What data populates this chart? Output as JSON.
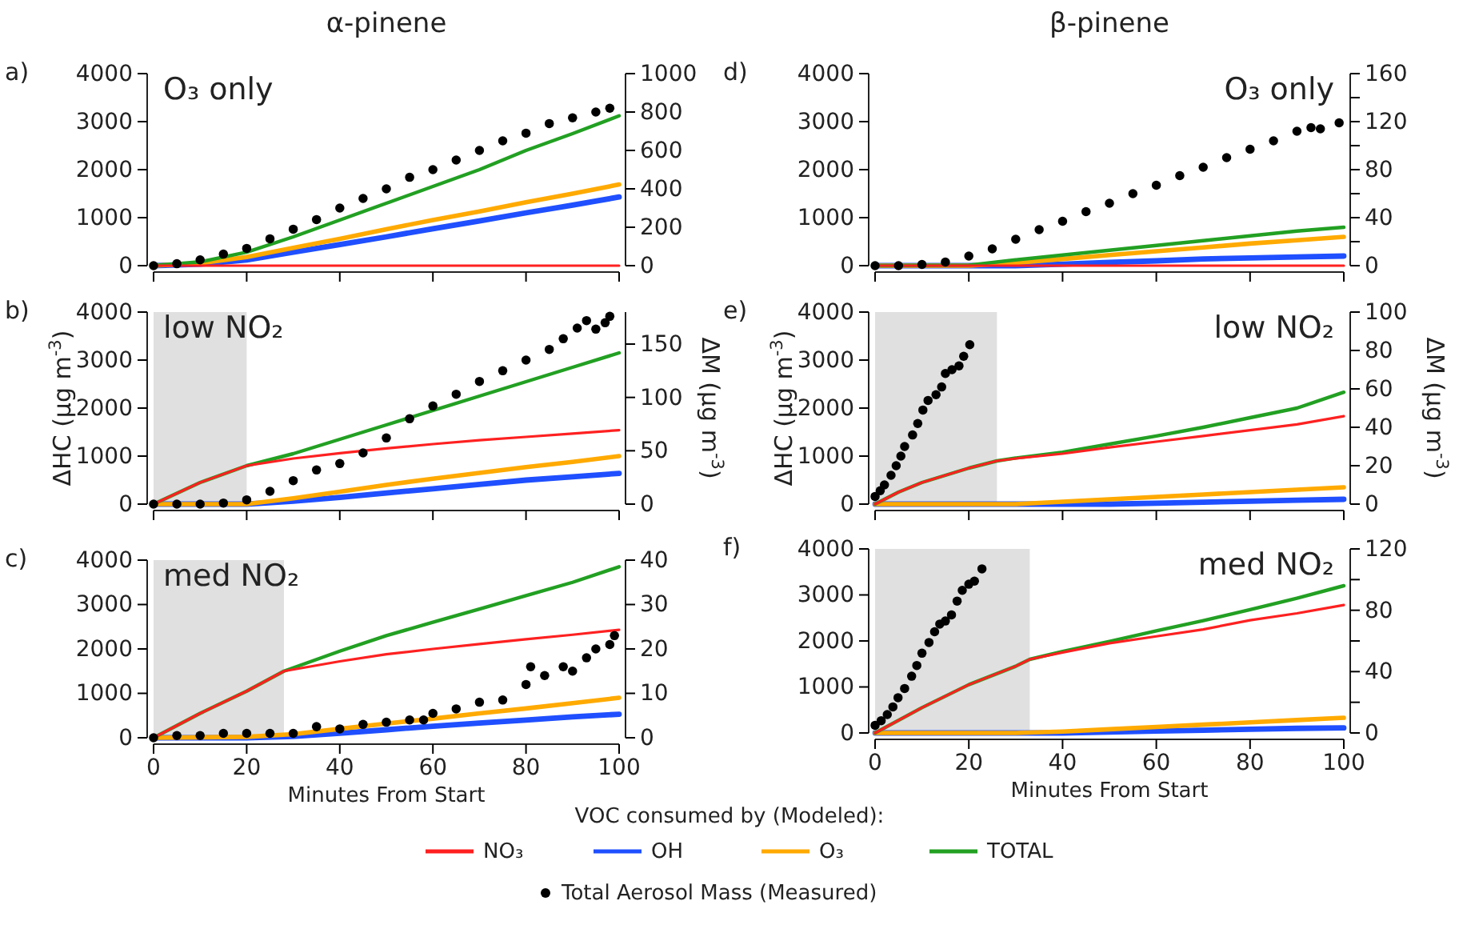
{
  "chart_data": [
    {
      "type": "line",
      "title": "α-pinene",
      "annotations": [
        "a)",
        "O₃ only"
      ],
      "xlim": [
        0,
        100
      ],
      "xticks": [
        0,
        20,
        40,
        60,
        80,
        100
      ],
      "ylim": [
        0,
        4000
      ],
      "yticks": [
        0,
        1000,
        2000,
        3000,
        4000
      ],
      "y2lim": [
        0,
        1000
      ],
      "y2ticks": [
        0,
        200,
        400,
        600,
        800,
        1000
      ],
      "tick_labels": "y",
      "series": [
        {
          "color": "#ff2020",
          "x": [
            0,
            100
          ],
          "values": [
            0,
            0
          ]
        },
        {
          "color": "#1f4fff",
          "x": [
            0,
            10,
            20,
            30,
            40,
            50,
            60,
            70,
            80,
            90,
            100
          ],
          "values": [
            0,
            30,
            120,
            280,
            440,
            600,
            770,
            930,
            1100,
            1260,
            1430
          ]
        },
        {
          "color": "#ffaa00",
          "x": [
            0,
            10,
            20,
            30,
            40,
            50,
            60,
            70,
            80,
            90,
            100
          ],
          "values": [
            0,
            50,
            180,
            370,
            560,
            760,
            950,
            1130,
            1320,
            1500,
            1690
          ]
        },
        {
          "color": "#22a022",
          "x": [
            0,
            10,
            20,
            30,
            40,
            50,
            60,
            70,
            80,
            90,
            100
          ],
          "values": [
            0,
            80,
            280,
            600,
            950,
            1300,
            1650,
            2000,
            2400,
            2750,
            3120
          ]
        },
        {
          "type": "scatter",
          "axis": "y2",
          "marker": "circle",
          "color": "#000000",
          "x": [
            0,
            5,
            10,
            15,
            20,
            25,
            30,
            35,
            40,
            45,
            50,
            55,
            60,
            65,
            70,
            75,
            80,
            85,
            90,
            95,
            98
          ],
          "values": [
            0,
            10,
            30,
            60,
            90,
            140,
            190,
            240,
            300,
            350,
            400,
            460,
            500,
            550,
            600,
            650,
            690,
            740,
            770,
            800,
            820
          ]
        }
      ]
    },
    {
      "type": "line",
      "annotations": [
        "b)",
        "low NO₂"
      ],
      "ylabel": "ΔHC (μg m$^{-3}$)",
      "y2label": "ΔM (μg m$^{-3}$)",
      "xlim": [
        0,
        100
      ],
      "xticks": [
        0,
        20,
        40,
        60,
        80,
        100
      ],
      "ylim": [
        0,
        4000
      ],
      "yticks": [
        0,
        1000,
        2000,
        3000,
        4000
      ],
      "y2lim": [
        0,
        180
      ],
      "y2ticks": [
        0,
        50,
        100,
        150
      ],
      "tick_labels": "y",
      "bands": [
        {
          "axis": "x",
          "from": 0,
          "to": 20,
          "color": "#e0e0e0"
        }
      ],
      "series": [
        {
          "color": "#ff2020",
          "x": [
            0,
            10,
            20,
            30,
            40,
            50,
            60,
            70,
            80,
            90,
            100
          ],
          "values": [
            0,
            450,
            800,
            950,
            1060,
            1160,
            1250,
            1330,
            1400,
            1470,
            1540
          ]
        },
        {
          "color": "#1f4fff",
          "x": [
            0,
            20,
            30,
            40,
            50,
            60,
            70,
            80,
            90,
            100
          ],
          "values": [
            0,
            0,
            60,
            140,
            230,
            320,
            410,
            500,
            570,
            640
          ]
        },
        {
          "color": "#ffaa00",
          "x": [
            0,
            20,
            30,
            40,
            50,
            60,
            70,
            80,
            90,
            100
          ],
          "values": [
            0,
            0,
            120,
            260,
            400,
            530,
            650,
            770,
            880,
            1000
          ]
        },
        {
          "color": "#22a022",
          "x": [
            0,
            10,
            20,
            30,
            40,
            50,
            60,
            70,
            80,
            90,
            100
          ],
          "values": [
            0,
            450,
            800,
            1050,
            1350,
            1650,
            1950,
            2250,
            2550,
            2850,
            3150
          ]
        },
        {
          "type": "scatter",
          "axis": "y2",
          "marker": "circle",
          "color": "#000000",
          "x": [
            0,
            5,
            10,
            15,
            20,
            25,
            30,
            35,
            40,
            45,
            50,
            55,
            60,
            65,
            70,
            75,
            80,
            85,
            88,
            91,
            93,
            95,
            97,
            98
          ],
          "values": [
            0,
            0,
            0,
            1,
            4,
            12,
            22,
            32,
            38,
            48,
            62,
            80,
            92,
            103,
            115,
            125,
            135,
            145,
            155,
            165,
            172,
            164,
            170,
            176
          ]
        }
      ]
    },
    {
      "type": "line",
      "annotations": [
        "c)",
        "med NO₂"
      ],
      "xlabel": "Minutes From Start",
      "legend": "bottom",
      "legend_title": "VOC consumed by (Modeled):",
      "xlim": [
        0,
        100
      ],
      "xticks": [
        0,
        20,
        40,
        60,
        80,
        100
      ],
      "ylim": [
        0,
        4000
      ],
      "yticks": [
        0,
        1000,
        2000,
        3000,
        4000
      ],
      "y2lim": [
        0,
        40
      ],
      "y2ticks": [
        0,
        10,
        20,
        30,
        40
      ],
      "bands": [
        {
          "axis": "x",
          "from": 0,
          "to": 28,
          "color": "#e0e0e0"
        }
      ],
      "series": [
        {
          "name": "NO₃",
          "color": "#ff2020",
          "x": [
            0,
            10,
            20,
            28,
            40,
            50,
            60,
            70,
            80,
            90,
            100
          ],
          "values": [
            0,
            550,
            1050,
            1500,
            1720,
            1880,
            2000,
            2110,
            2220,
            2320,
            2430
          ]
        },
        {
          "name": "OH",
          "color": "#1f4fff",
          "x": [
            0,
            20,
            30,
            40,
            50,
            60,
            70,
            80,
            90,
            100
          ],
          "values": [
            0,
            0,
            30,
            100,
            180,
            260,
            330,
            400,
            470,
            530
          ]
        },
        {
          "name": "O₃",
          "color": "#ffaa00",
          "x": [
            0,
            20,
            30,
            40,
            50,
            60,
            70,
            80,
            90,
            100
          ],
          "values": [
            0,
            20,
            80,
            200,
            320,
            430,
            550,
            660,
            780,
            900
          ]
        },
        {
          "name": "TOTAL",
          "color": "#22a022",
          "x": [
            0,
            10,
            20,
            28,
            40,
            50,
            60,
            70,
            80,
            90,
            100
          ],
          "values": [
            0,
            550,
            1050,
            1500,
            1950,
            2300,
            2600,
            2900,
            3200,
            3500,
            3850
          ]
        },
        {
          "name": "Total Aerosol Mass (Measured)",
          "type": "scatter",
          "axis": "y2",
          "marker": "circle",
          "color": "#000000",
          "x": [
            0,
            5,
            10,
            15,
            20,
            25,
            30,
            35,
            40,
            45,
            50,
            55,
            58,
            60,
            65,
            70,
            75,
            80,
            81,
            84,
            88,
            90,
            93,
            95,
            98,
            99
          ],
          "values": [
            0,
            0.5,
            0.5,
            1,
            1,
            1,
            1,
            2.5,
            2,
            3,
            3.5,
            4,
            4,
            5.5,
            6.5,
            8,
            8.5,
            12,
            16,
            14,
            16,
            15,
            18,
            20,
            21,
            23
          ]
        }
      ]
    },
    {
      "type": "line",
      "title": "β-pinene",
      "annotations": [
        "d)",
        "O₃ only"
      ],
      "xlim": [
        0,
        100
      ],
      "xticks": [
        0,
        20,
        40,
        60,
        80,
        100
      ],
      "ylim": [
        0,
        4000
      ],
      "yticks": [
        0,
        1000,
        2000,
        3000,
        4000
      ],
      "y2lim": [
        0,
        160
      ],
      "y2ticks": [
        0,
        {
          "value": 20,
          "label": null
        },
        40,
        {
          "value": 60,
          "label": null
        },
        80,
        {
          "value": 100,
          "label": null
        },
        120,
        {
          "value": 140,
          "label": null
        },
        160
      ],
      "tick_labels": "y",
      "series": [
        {
          "color": "#ff2020",
          "x": [
            0,
            100
          ],
          "values": [
            0,
            0
          ]
        },
        {
          "color": "#1f4fff",
          "x": [
            0,
            30,
            40,
            50,
            60,
            70,
            80,
            90,
            100
          ],
          "values": [
            0,
            0,
            30,
            70,
            100,
            140,
            160,
            180,
            200
          ]
        },
        {
          "color": "#ffaa00",
          "x": [
            0,
            20,
            30,
            40,
            50,
            60,
            70,
            80,
            90,
            100
          ],
          "values": [
            0,
            0,
            60,
            140,
            220,
            300,
            380,
            460,
            530,
            600
          ]
        },
        {
          "color": "#22a022",
          "x": [
            0,
            20,
            30,
            40,
            50,
            60,
            70,
            80,
            90,
            100
          ],
          "values": [
            0,
            10,
            120,
            220,
            320,
            420,
            520,
            620,
            720,
            800
          ]
        },
        {
          "type": "scatter",
          "axis": "y2",
          "marker": "circle",
          "color": "#000000",
          "x": [
            0,
            5,
            10,
            15,
            20,
            25,
            30,
            35,
            40,
            45,
            50,
            55,
            60,
            65,
            70,
            75,
            80,
            85,
            90,
            93,
            95,
            99
          ],
          "values": [
            0,
            0,
            1,
            3,
            8,
            14,
            22,
            30,
            37,
            45,
            52,
            60,
            67,
            75,
            82,
            90,
            97,
            104,
            112,
            115,
            114,
            119
          ]
        }
      ]
    },
    {
      "type": "line",
      "annotations": [
        "e)",
        "low NO₂"
      ],
      "ylabel": "ΔHC (μg m$^{-3}$)",
      "y2label": "ΔM (μg m$^{-3}$)",
      "xlim": [
        0,
        100
      ],
      "xticks": [
        0,
        20,
        40,
        60,
        80,
        100
      ],
      "ylim": [
        0,
        4000
      ],
      "yticks": [
        0,
        1000,
        2000,
        3000,
        4000
      ],
      "y2lim": [
        0,
        100
      ],
      "y2ticks": [
        0,
        20,
        40,
        60,
        80,
        100
      ],
      "tick_labels": "y",
      "bands": [
        {
          "axis": "x",
          "from": 0,
          "to": 26,
          "color": "#e0e0e0"
        }
      ],
      "series": [
        {
          "color": "#ff2020",
          "x": [
            0,
            5,
            10,
            20,
            26,
            30,
            40,
            50,
            60,
            70,
            80,
            90,
            100
          ],
          "values": [
            0,
            250,
            450,
            750,
            900,
            950,
            1050,
            1180,
            1300,
            1420,
            1540,
            1660,
            1830
          ]
        },
        {
          "color": "#1f4fff",
          "x": [
            0,
            50,
            60,
            70,
            80,
            90,
            100
          ],
          "values": [
            0,
            0,
            20,
            40,
            60,
            80,
            100
          ]
        },
        {
          "color": "#ffaa00",
          "x": [
            0,
            30,
            40,
            50,
            60,
            70,
            80,
            90,
            100
          ],
          "values": [
            0,
            0,
            50,
            100,
            150,
            200,
            250,
            300,
            350
          ]
        },
        {
          "color": "#22a022",
          "x": [
            0,
            5,
            10,
            20,
            26,
            30,
            40,
            50,
            60,
            70,
            80,
            90,
            100
          ],
          "values": [
            0,
            250,
            450,
            750,
            900,
            960,
            1080,
            1250,
            1420,
            1600,
            1800,
            2000,
            2330
          ]
        },
        {
          "type": "scatter",
          "axis": "y2",
          "marker": "circle",
          "color": "#000000",
          "x": [
            0,
            1.1,
            2,
            3.4,
            4.5,
            5.5,
            6.3,
            8,
            9.1,
            10.2,
            11.3,
            13,
            14.2,
            15,
            16.4,
            17.9,
            18.9,
            20.2
          ],
          "values": [
            4,
            7,
            10,
            15,
            20,
            25,
            30,
            36,
            42,
            49,
            54,
            57,
            61,
            68,
            70,
            72,
            77,
            83
          ]
        }
      ]
    },
    {
      "type": "line",
      "annotations": [
        "f)",
        "med NO₂"
      ],
      "xlabel": "Minutes From Start",
      "xlim": [
        0,
        100
      ],
      "xticks": [
        0,
        20,
        40,
        60,
        80,
        100
      ],
      "ylim": [
        0,
        4000
      ],
      "yticks": [
        0,
        1000,
        2000,
        3000,
        4000
      ],
      "y2lim": [
        0,
        120
      ],
      "y2ticks": [
        0,
        {
          "value": 20,
          "label": null
        },
        40,
        {
          "value": 60,
          "label": null
        },
        80,
        {
          "value": 100,
          "label": null
        },
        120
      ],
      "bands": [
        {
          "axis": "x",
          "from": 0,
          "to": 33,
          "color": "#e0e0e0"
        }
      ],
      "series": [
        {
          "color": "#ff2020",
          "x": [
            0,
            10,
            20,
            30,
            33,
            40,
            50,
            60,
            70,
            80,
            90,
            100
          ],
          "values": [
            0,
            550,
            1050,
            1450,
            1600,
            1750,
            1950,
            2100,
            2250,
            2450,
            2600,
            2780
          ]
        },
        {
          "color": "#1f4fff",
          "x": [
            0,
            40,
            50,
            60,
            70,
            80,
            90,
            100
          ],
          "values": [
            0,
            0,
            20,
            40,
            60,
            80,
            100,
            110
          ]
        },
        {
          "color": "#ffaa00",
          "x": [
            0,
            30,
            40,
            50,
            60,
            70,
            80,
            90,
            100
          ],
          "values": [
            0,
            0,
            30,
            80,
            130,
            180,
            230,
            280,
            330
          ]
        },
        {
          "color": "#22a022",
          "x": [
            0,
            10,
            20,
            30,
            33,
            40,
            50,
            60,
            70,
            80,
            90,
            100
          ],
          "values": [
            0,
            550,
            1050,
            1450,
            1600,
            1770,
            1990,
            2220,
            2440,
            2680,
            2930,
            3200
          ]
        },
        {
          "type": "scatter",
          "axis": "y2",
          "marker": "circle",
          "color": "#000000",
          "x": [
            0,
            1.3,
            2.6,
            3.8,
            4.9,
            6.3,
            7.8,
            8.9,
            10,
            11.5,
            12.7,
            13.8,
            15,
            16.3,
            17.5,
            18.6,
            20,
            21.2,
            22.8
          ],
          "values": [
            5,
            8,
            12,
            17,
            23,
            29,
            37,
            44,
            52,
            59,
            66,
            71,
            73,
            77,
            86,
            93,
            97,
            99,
            107
          ]
        }
      ]
    }
  ]
}
